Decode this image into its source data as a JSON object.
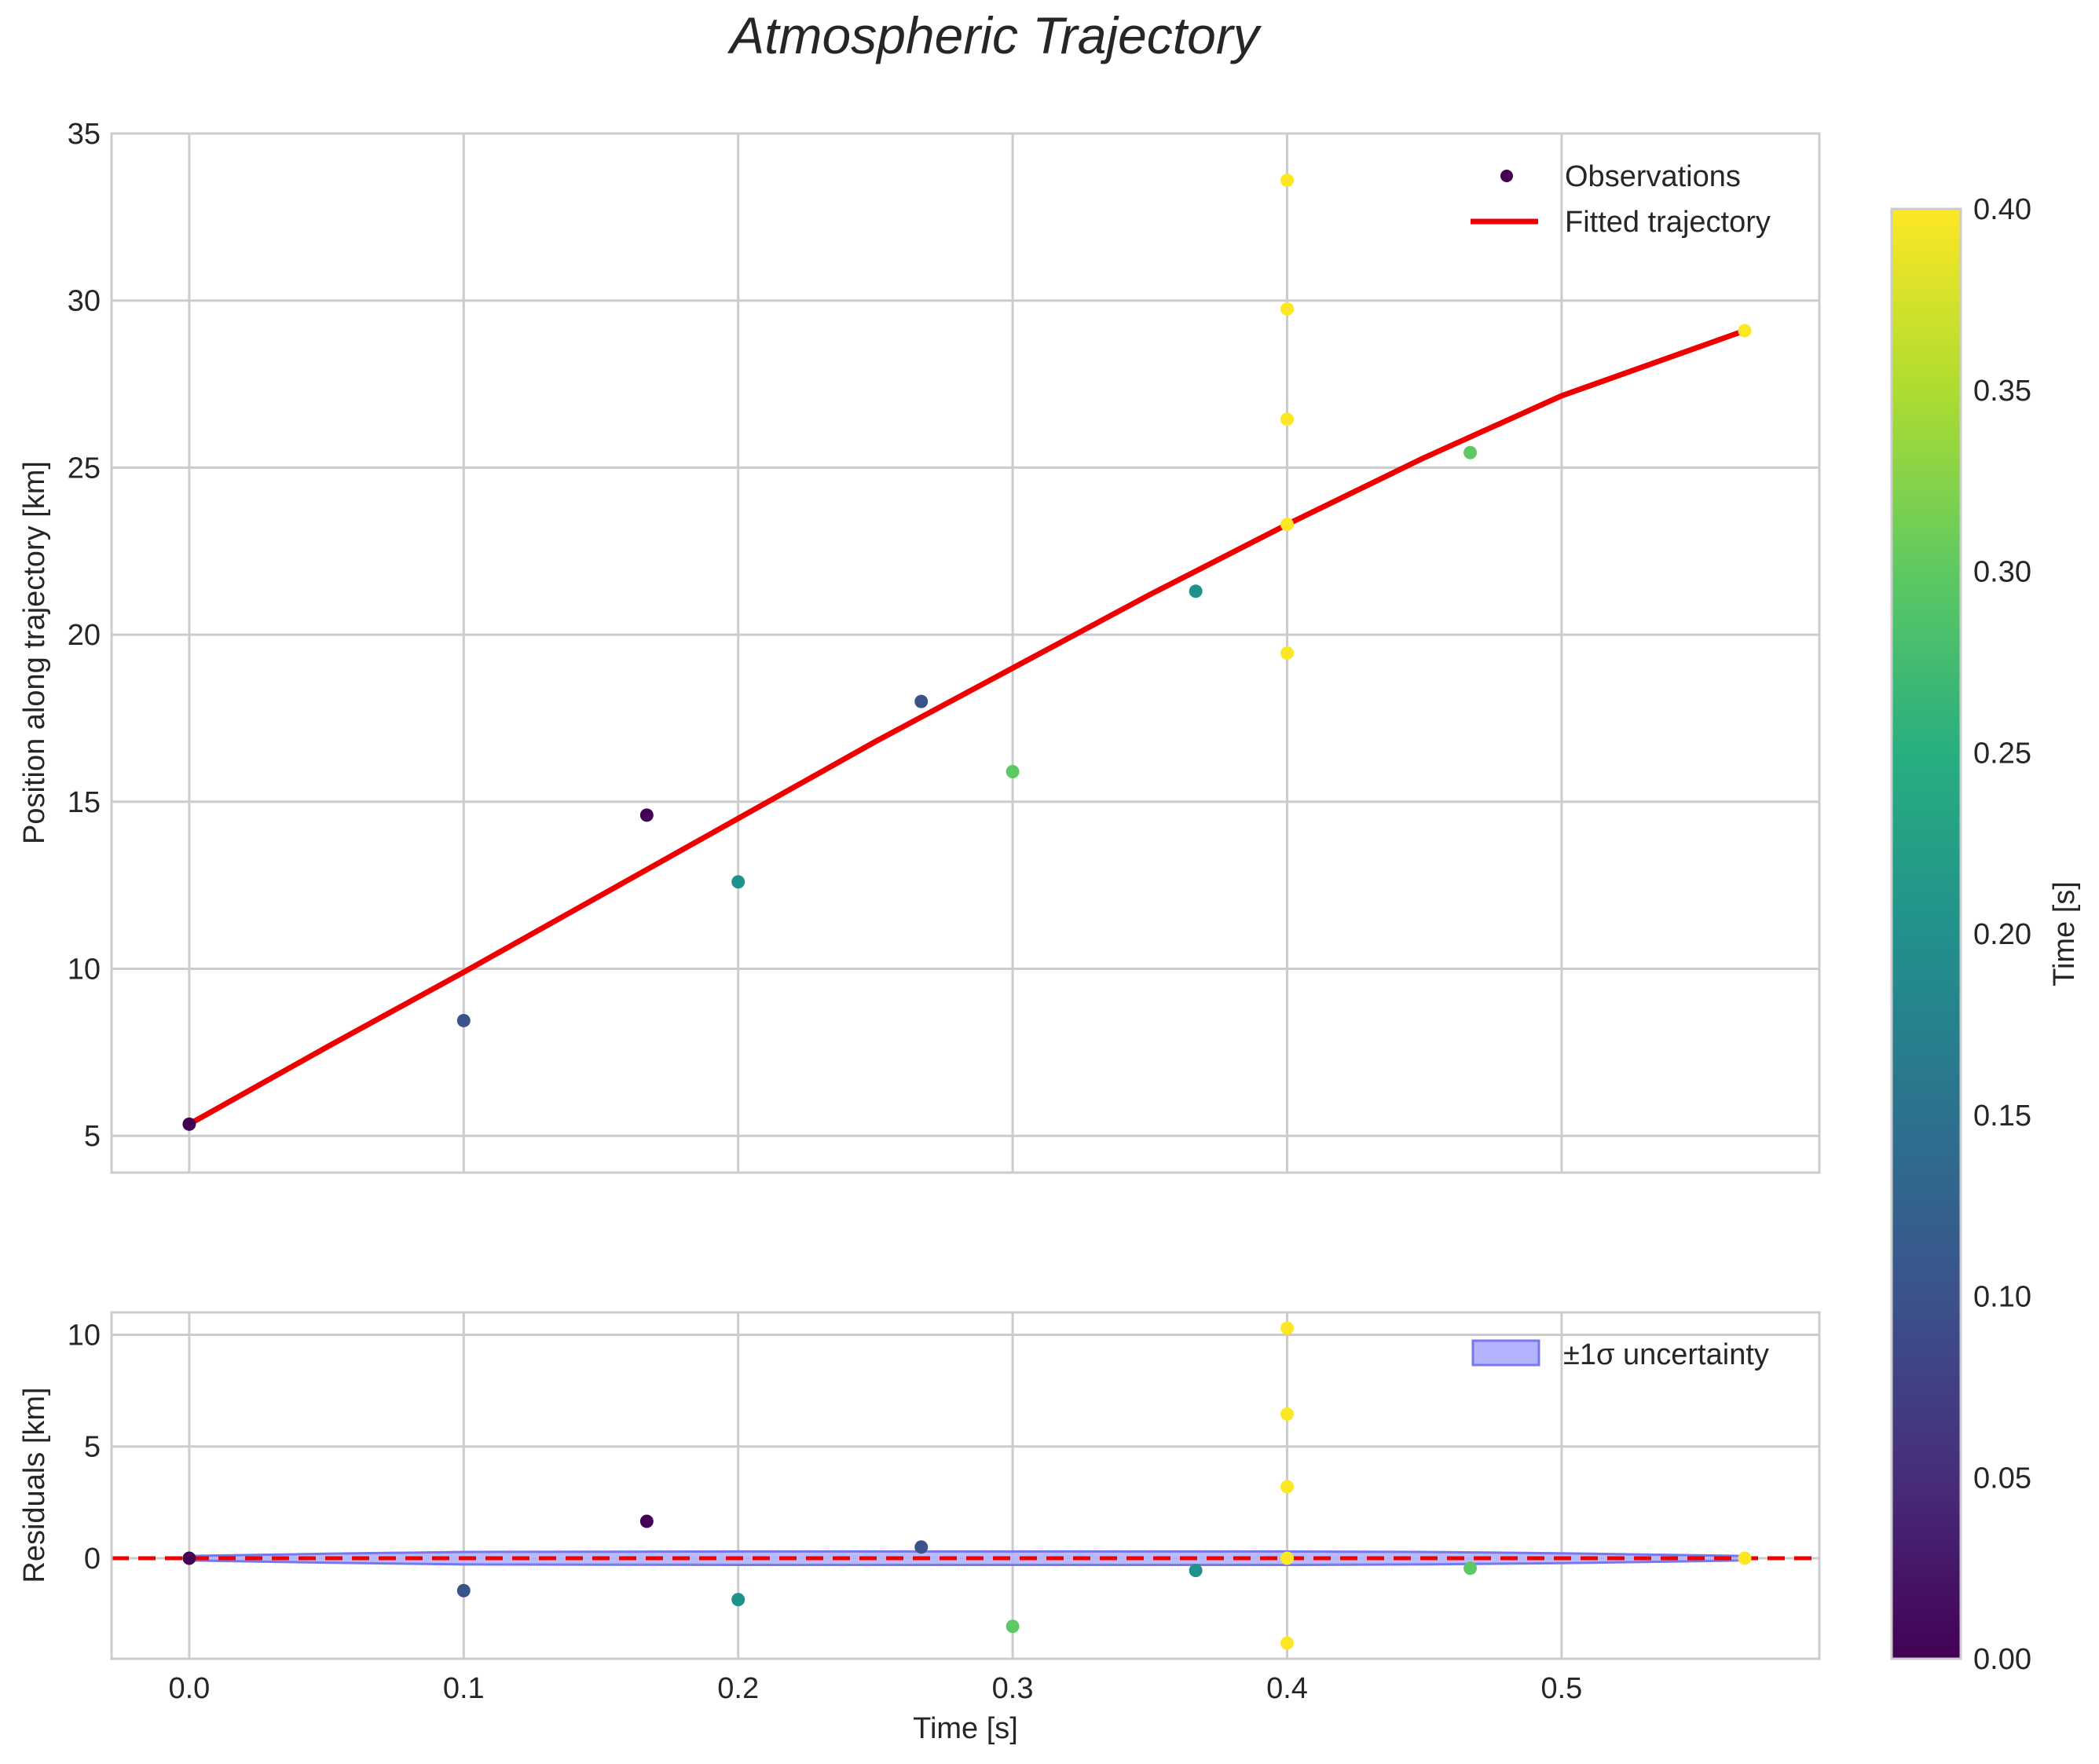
{
  "chart_data": {
    "title": "Atmospheric Trajectory",
    "colors": {
      "fit_line": "#ee0000",
      "zero_line": "#ee0000",
      "band_fill": "#b3b3ff",
      "band_edge": "#7777ee",
      "grid": "#cccccc",
      "frame": "#cccccc"
    },
    "panels": [
      {
        "id": "top",
        "type": "scatter",
        "xlabel": "",
        "ylabel": "Position along trajectory [km]",
        "xlim": [
          -0.0283,
          0.5939
        ],
        "ylim": [
          3.9,
          35
        ],
        "yticks": [
          5,
          10,
          15,
          20,
          25,
          30,
          35
        ],
        "points": [
          {
            "x": 0.0,
            "y": 5.35,
            "c": 0.0
          },
          {
            "x": 0.1,
            "y": 8.45,
            "c": 0.1
          },
          {
            "x": 0.1667,
            "y": 14.6,
            "c": 0.0
          },
          {
            "x": 0.2,
            "y": 12.6,
            "c": 0.2
          },
          {
            "x": 0.2667,
            "y": 18.0,
            "c": 0.1
          },
          {
            "x": 0.3,
            "y": 15.9,
            "c": 0.3
          },
          {
            "x": 0.3667,
            "y": 21.3,
            "c": 0.2
          },
          {
            "x": 0.4,
            "y": 19.45,
            "c": 0.4
          },
          {
            "x": 0.4,
            "y": 23.3,
            "c": 0.4
          },
          {
            "x": 0.4,
            "y": 26.45,
            "c": 0.4
          },
          {
            "x": 0.4,
            "y": 29.75,
            "c": 0.4
          },
          {
            "x": 0.4,
            "y": 33.6,
            "c": 0.4
          },
          {
            "x": 0.4667,
            "y": 25.45,
            "c": 0.3
          },
          {
            "x": 0.5667,
            "y": 29.1,
            "c": 0.4
          }
        ],
        "fit_line": {
          "x": [
            0.0,
            0.05,
            0.1,
            0.15,
            0.2,
            0.25,
            0.3,
            0.35,
            0.4,
            0.45,
            0.5,
            0.5667
          ],
          "y": [
            5.35,
            7.65,
            9.9,
            12.2,
            14.5,
            16.8,
            19.0,
            21.2,
            23.3,
            25.3,
            27.15,
            29.1
          ]
        }
      },
      {
        "id": "bottom",
        "type": "scatter",
        "xlabel": "Time [s]",
        "ylabel": "Residuals [km]",
        "xlim": [
          -0.0283,
          0.5939
        ],
        "ylim": [
          -4.5,
          11
        ],
        "yticks": [
          0,
          5,
          10
        ],
        "points": [
          {
            "x": 0.0,
            "y": 0.0,
            "c": 0.0
          },
          {
            "x": 0.1,
            "y": -1.45,
            "c": 0.1
          },
          {
            "x": 0.1667,
            "y": 1.65,
            "c": 0.0
          },
          {
            "x": 0.2,
            "y": -1.85,
            "c": 0.2
          },
          {
            "x": 0.2667,
            "y": 0.5,
            "c": 0.1
          },
          {
            "x": 0.3,
            "y": -3.05,
            "c": 0.3
          },
          {
            "x": 0.3667,
            "y": -0.55,
            "c": 0.2
          },
          {
            "x": 0.4,
            "y": -3.8,
            "c": 0.4
          },
          {
            "x": 0.4,
            "y": 0.0,
            "c": 0.4
          },
          {
            "x": 0.4,
            "y": 3.2,
            "c": 0.4
          },
          {
            "x": 0.4,
            "y": 6.45,
            "c": 0.4
          },
          {
            "x": 0.4,
            "y": 10.3,
            "c": 0.4
          },
          {
            "x": 0.4667,
            "y": -0.45,
            "c": 0.3
          },
          {
            "x": 0.5667,
            "y": 0.0,
            "c": 0.4
          }
        ],
        "zero_line": 0,
        "band": {
          "x": [
            0.0,
            0.05,
            0.1,
            0.2,
            0.3,
            0.4,
            0.45,
            0.5,
            0.5667
          ],
          "half_width": [
            0.1,
            0.2,
            0.28,
            0.3,
            0.3,
            0.3,
            0.28,
            0.22,
            0.1
          ]
        }
      }
    ],
    "xticks": [
      0.0,
      0.1,
      0.2,
      0.3,
      0.4,
      0.5
    ],
    "xtick_labels": [
      "0.0",
      "0.1",
      "0.2",
      "0.3",
      "0.4",
      "0.5"
    ],
    "legend_top": [
      {
        "label": "Observations",
        "kind": "marker"
      },
      {
        "label": "Fitted trajectory",
        "kind": "line"
      }
    ],
    "legend_bottom": [
      {
        "label": "±1σ uncertainty",
        "kind": "patch"
      }
    ],
    "colorbar": {
      "label": "Time [s]",
      "colormap": "viridis",
      "range": [
        0.0,
        0.4
      ],
      "ticks": [
        0.0,
        0.05,
        0.1,
        0.15,
        0.2,
        0.25,
        0.3,
        0.35,
        0.4
      ],
      "tick_labels": [
        "0.00",
        "0.05",
        "0.10",
        "0.15",
        "0.20",
        "0.25",
        "0.30",
        "0.35",
        "0.40"
      ]
    }
  }
}
